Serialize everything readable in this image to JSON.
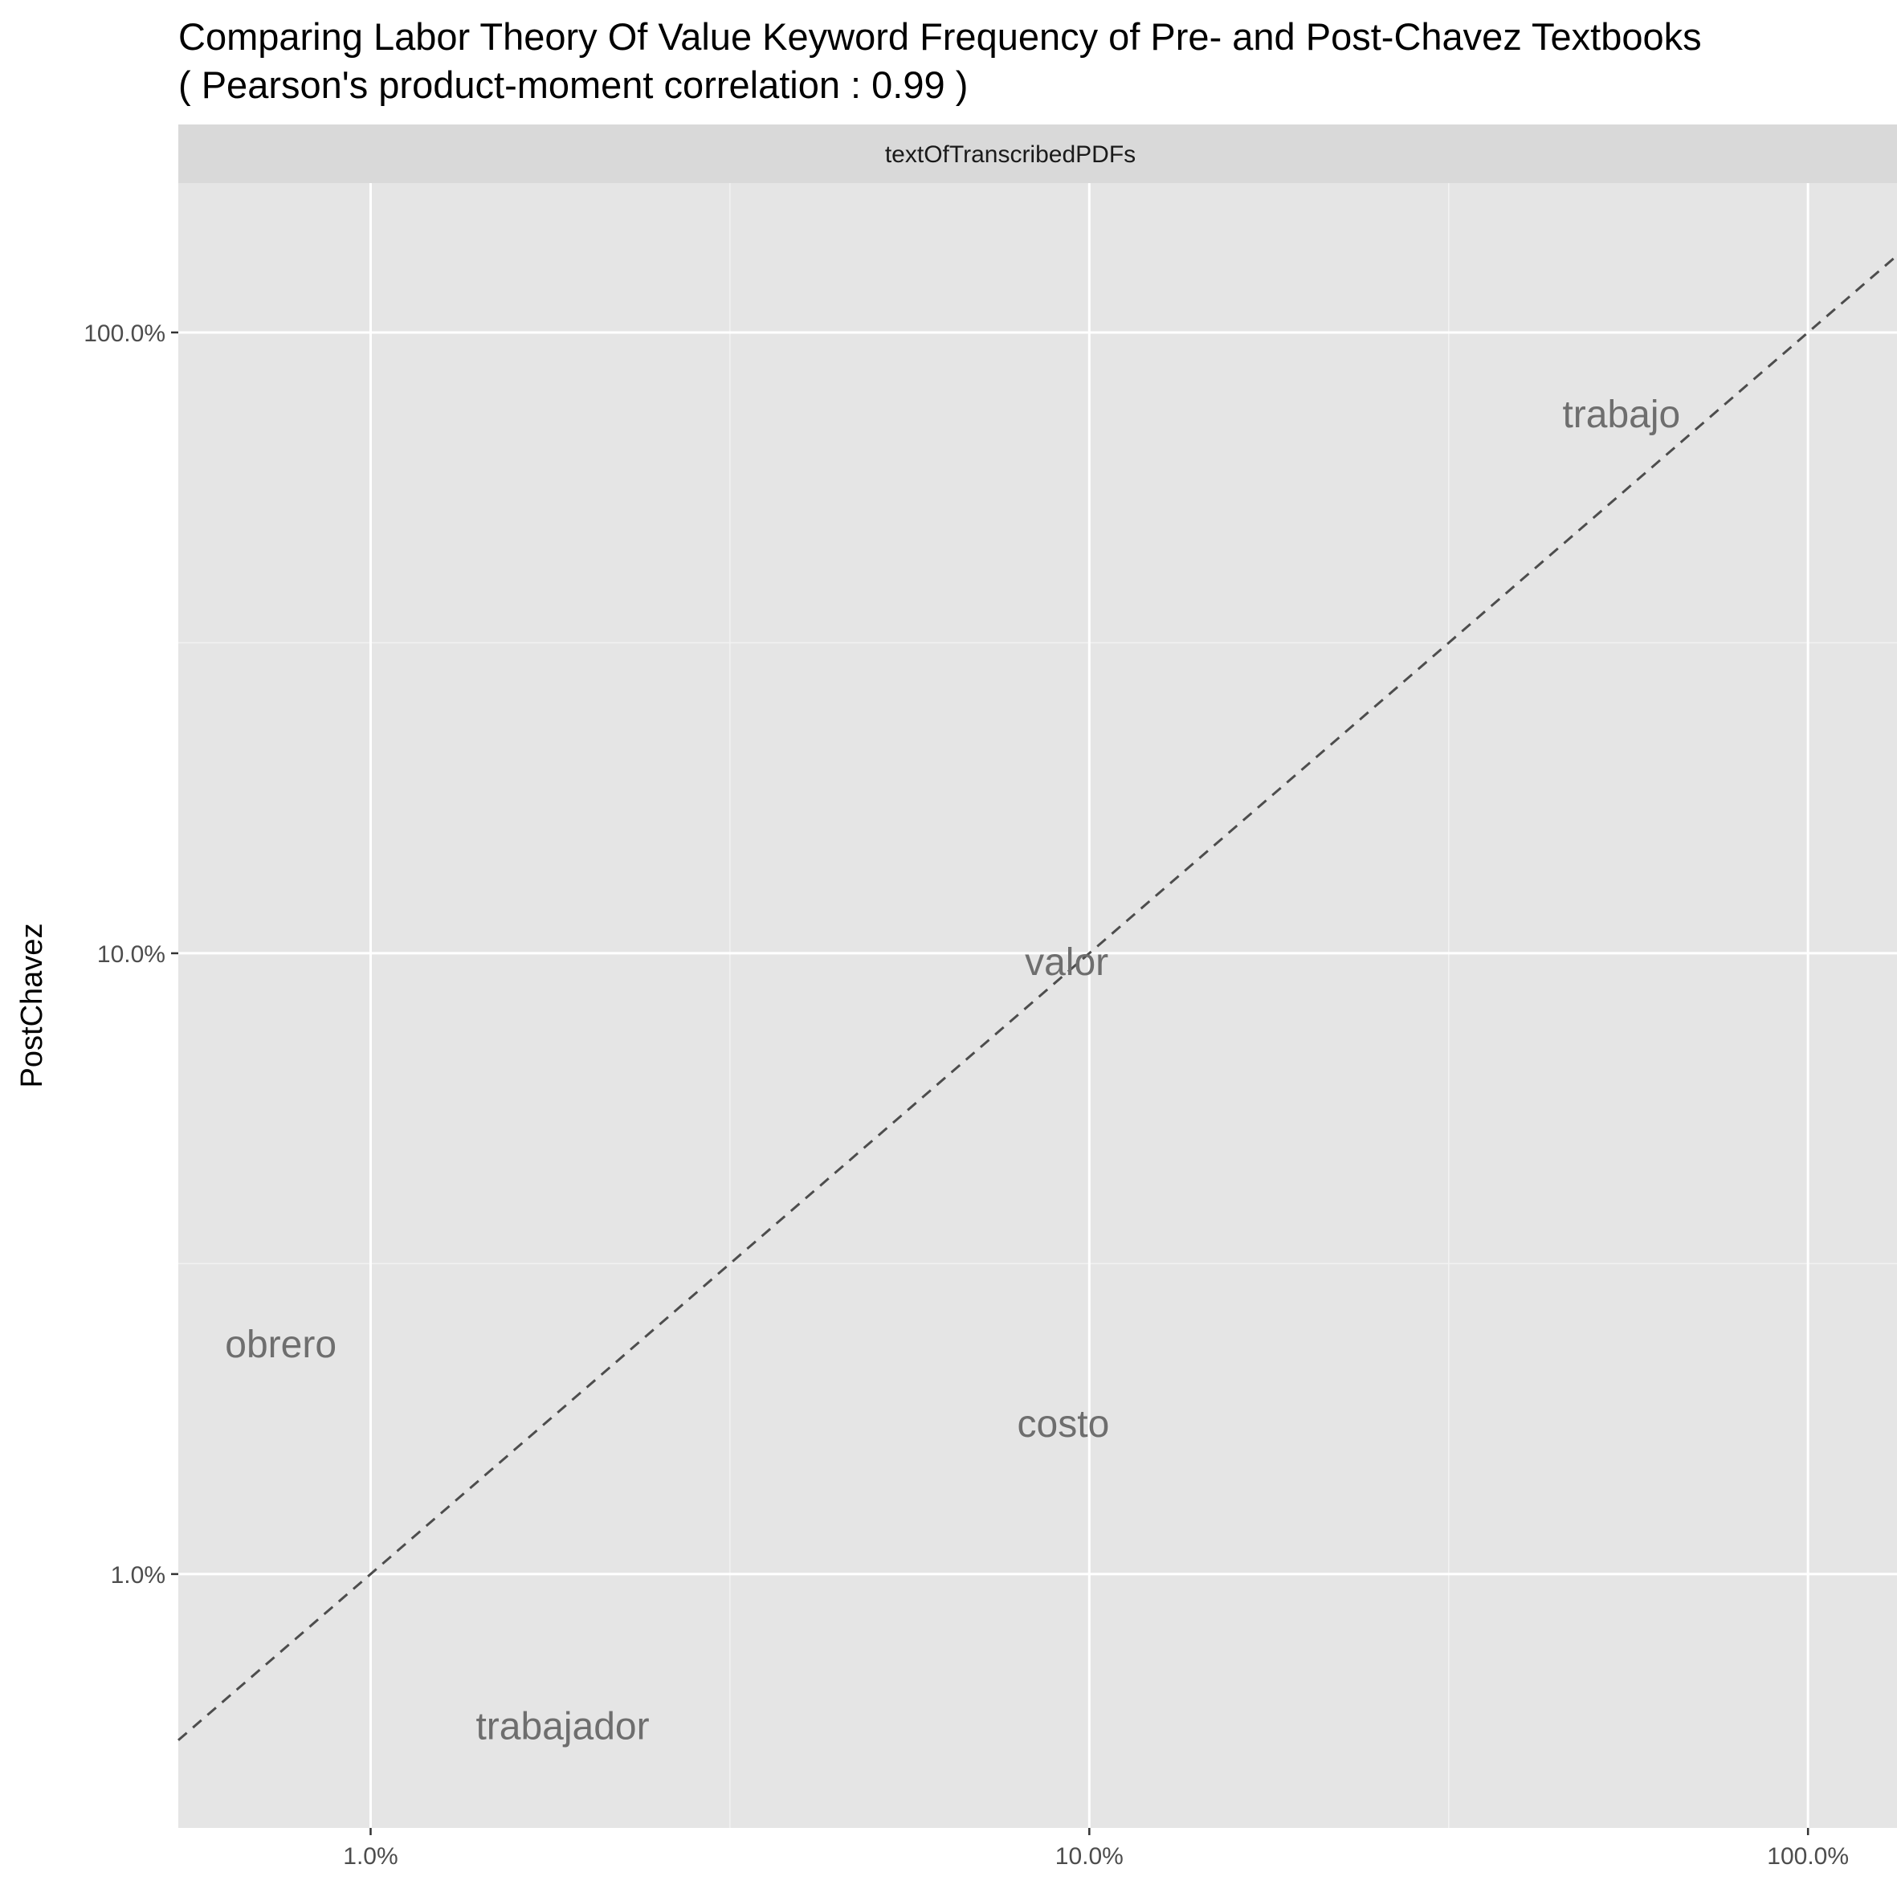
{
  "chart_data": {
    "type": "scatter",
    "title": "Comparing Labor Theory Of Value Keyword Frequency of Pre- and Post-Chavez Textbooks",
    "subtitle": "( Pearson's product-moment correlation :  0.99 )",
    "facet_label": "textOfTranscribedPDFs",
    "xlabel": "",
    "ylabel": "PostChavez",
    "x_scale": "log10",
    "y_scale": "log10",
    "xlim": [
      0.0054,
      1.33
    ],
    "ylim": [
      0.0039,
      1.74
    ],
    "x_ticks": [
      {
        "value": 0.01,
        "label": "1.0%"
      },
      {
        "value": 0.1,
        "label": "10.0%"
      },
      {
        "value": 1.0,
        "label": "100.0%"
      }
    ],
    "y_ticks": [
      {
        "value": 0.01,
        "label": "1.0%"
      },
      {
        "value": 0.1,
        "label": "10.0%"
      },
      {
        "value": 1.0,
        "label": "100.0%"
      }
    ],
    "reference_line": "y = x (dashed)",
    "grid": true,
    "points": [
      {
        "label": "trabajo",
        "x": 0.55,
        "y": 0.74
      },
      {
        "label": "valor",
        "x": 0.093,
        "y": 0.097
      },
      {
        "label": "obrero",
        "x": 0.0075,
        "y": 0.0235
      },
      {
        "label": "costo",
        "x": 0.092,
        "y": 0.0175
      },
      {
        "label": "trabajador",
        "x": 0.0185,
        "y": 0.0057
      }
    ]
  }
}
